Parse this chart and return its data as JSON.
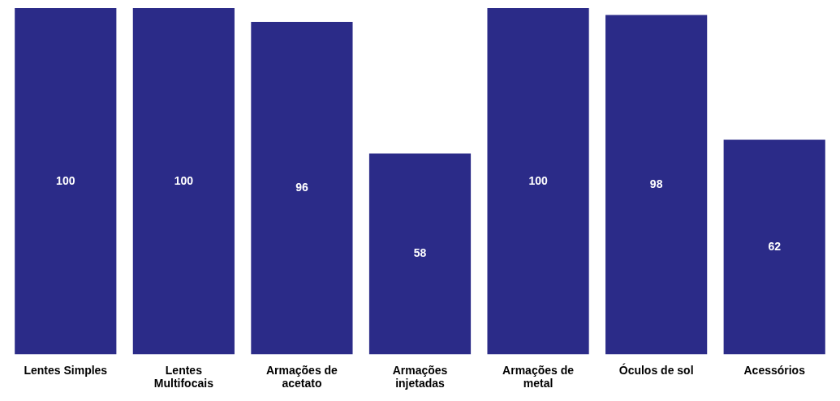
{
  "chart_data": {
    "type": "bar",
    "categories": [
      "Lentes Simples",
      "Lentes Multifocais",
      "Armações de acetato",
      "Armações injetadas",
      "Armações de metal",
      "Óculos de sol",
      "Acessórios"
    ],
    "values": [
      100,
      100,
      96,
      58,
      100,
      98,
      62
    ],
    "color": "#2b2b88",
    "tick_labels": "x",
    "data_labels": true,
    "grid": false,
    "legend": false
  }
}
